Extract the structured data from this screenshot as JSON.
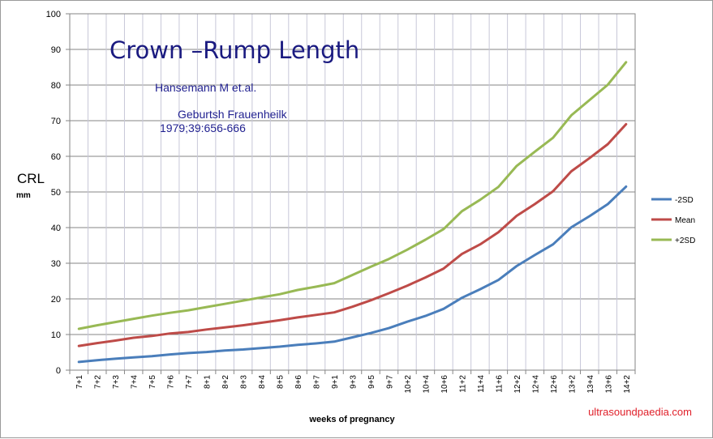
{
  "chart_data": {
    "type": "line",
    "title": "Crown –Rump Length",
    "annotations": [
      "Hansemann M et.al.",
      "Geburtsh Frauenheilk",
      "1979;39:656-666"
    ],
    "ylabel": "CRL",
    "ylabel_unit": "mm",
    "xlabel": "weeks of pregnancy",
    "watermark": "ultrasoundpaedia.com",
    "ylim": [
      0,
      100
    ],
    "yticks": [
      0,
      10,
      20,
      30,
      40,
      50,
      60,
      70,
      80,
      90,
      100
    ],
    "grid": true,
    "legend_position": "right",
    "categories": [
      "7+1",
      "7+2",
      "7+3",
      "7+4",
      "7+5",
      "7+6",
      "7+7",
      "8+1",
      "8+2",
      "8+3",
      "8+4",
      "8+5",
      "8+6",
      "8+7",
      "9+1",
      "9+3",
      "9+5",
      "9+7",
      "10+2",
      "10+4",
      "10+6",
      "11+2",
      "11+4",
      "11+6",
      "12+2",
      "12+4",
      "12+6",
      "13+2",
      "13+4",
      "13+6",
      "14+2"
    ],
    "series": [
      {
        "name": "-2SD",
        "color": "#4a7ebb",
        "values": [
          2.3,
          2.8,
          3.2,
          3.6,
          3.9,
          4.4,
          4.8,
          5.1,
          5.5,
          5.8,
          6.2,
          6.6,
          7.1,
          7.5,
          8.0,
          9.2,
          10.4,
          11.8,
          13.6,
          15.2,
          17.2,
          20.3,
          22.7,
          25.3,
          29.2,
          32.3,
          35.3,
          40.1,
          43.2,
          46.6,
          51.5
        ]
      },
      {
        "name": "Mean",
        "color": "#be4b48",
        "values": [
          6.8,
          7.6,
          8.3,
          9.1,
          9.6,
          10.3,
          10.7,
          11.4,
          12.0,
          12.6,
          13.3,
          14.0,
          14.8,
          15.5,
          16.2,
          17.8,
          19.6,
          21.6,
          23.7,
          26.0,
          28.5,
          32.6,
          35.3,
          38.7,
          43.3,
          46.6,
          50.2,
          55.8,
          59.5,
          63.4,
          69.0
        ]
      },
      {
        "name": "+2SD",
        "color": "#98b954",
        "values": [
          11.6,
          12.6,
          13.5,
          14.4,
          15.3,
          16.1,
          16.8,
          17.7,
          18.6,
          19.5,
          20.4,
          21.3,
          22.5,
          23.4,
          24.4,
          26.7,
          29.0,
          31.2,
          33.8,
          36.6,
          39.6,
          44.6,
          47.8,
          51.4,
          57.3,
          61.3,
          65.2,
          71.5,
          75.8,
          80.1,
          86.4
        ]
      }
    ]
  }
}
